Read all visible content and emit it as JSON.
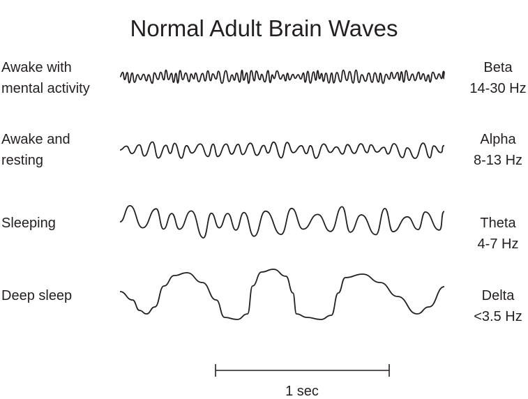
{
  "title": "Normal Adult Brain Waves",
  "rows": [
    {
      "state": "Awake with mental activity",
      "state_lines": [
        "Awake with",
        "mental activity"
      ],
      "band": "Beta",
      "range": "14-30 Hz"
    },
    {
      "state": "Awake and resting",
      "state_lines": [
        "Awake and",
        "resting"
      ],
      "band": "Alpha",
      "range": "8-13 Hz"
    },
    {
      "state": "Sleeping",
      "state_lines": [
        "Sleeping"
      ],
      "band": "Theta",
      "range": "4-7 Hz"
    },
    {
      "state": "Deep sleep",
      "state_lines": [
        "Deep sleep"
      ],
      "band": "Delta",
      "range": "<3.5 Hz"
    }
  ],
  "scale_bar": {
    "label": "1 sec"
  },
  "colors": {
    "ink": "#231f20",
    "background": "#ffffff"
  }
}
